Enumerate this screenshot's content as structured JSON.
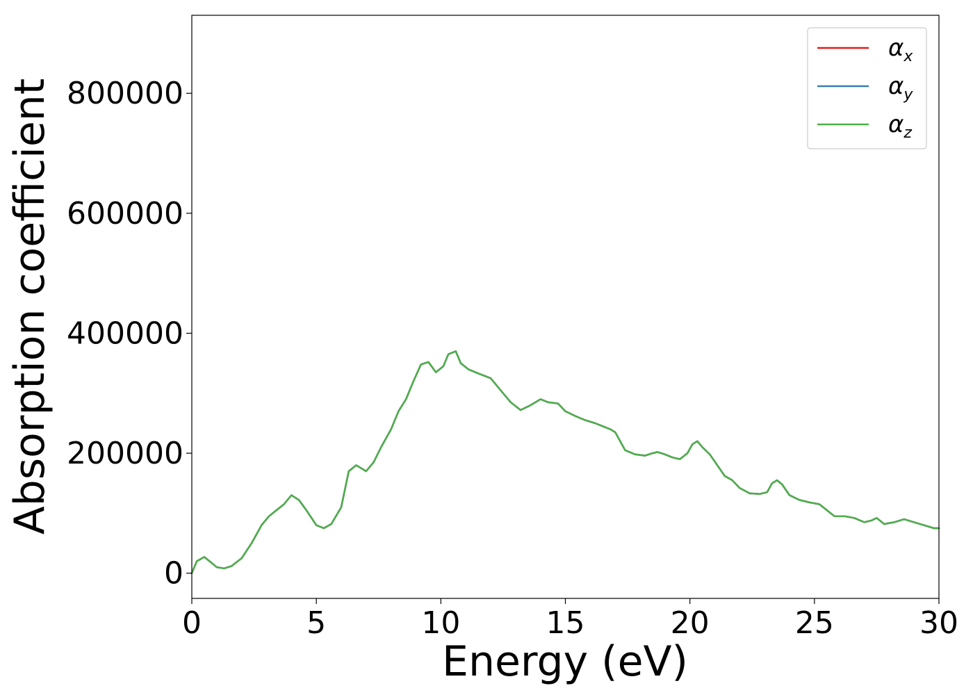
{
  "chart_data": {
    "type": "line",
    "xlabel": "Energy (eV)",
    "ylabel": "Absorption coefficient",
    "xlim": [
      0,
      30
    ],
    "ylim": [
      -42000,
      930000
    ],
    "x_ticks": [
      0,
      5,
      10,
      15,
      20,
      25,
      30
    ],
    "y_ticks": [
      0,
      200000,
      400000,
      600000,
      800000
    ],
    "grid": false,
    "legend_position": "top-right",
    "series": [
      {
        "name_symbol": "α",
        "name_subscript": "x",
        "color": "#e41a1c",
        "x": [
          0,
          0.2,
          0.5,
          0.8,
          1.0,
          1.3,
          1.6,
          2.0,
          2.4,
          2.8,
          3.1,
          3.4,
          3.7,
          4.0,
          4.3,
          4.6,
          5.0,
          5.3,
          5.6,
          6.0,
          6.3,
          6.6,
          6.8,
          7.0,
          7.3,
          7.6,
          8.0,
          8.3,
          8.6,
          8.9,
          9.2,
          9.5,
          9.8,
          10.1,
          10.3,
          10.6,
          10.8,
          11.1,
          11.5,
          12.0,
          12.4,
          12.8,
          13.2,
          13.6,
          14.0,
          14.3,
          14.7,
          15.0,
          15.4,
          15.8,
          16.2,
          16.5,
          16.8,
          17.0,
          17.4,
          17.8,
          18.2,
          18.5,
          18.7,
          19.0,
          19.3,
          19.6,
          19.9,
          20.1,
          20.3,
          20.5,
          20.8,
          21.1,
          21.4,
          21.7,
          22.0,
          22.4,
          22.8,
          23.1,
          23.3,
          23.5,
          23.7,
          24.0,
          24.4,
          24.8,
          25.2,
          25.5,
          25.8,
          26.2,
          26.6,
          27.0,
          27.3,
          27.5,
          27.8,
          28.2,
          28.6,
          29.0,
          29.4,
          29.8,
          30.0
        ],
        "y": [
          0,
          20000,
          27000,
          17000,
          10000,
          8000,
          12000,
          25000,
          50000,
          80000,
          95000,
          105000,
          115000,
          130000,
          122000,
          105000,
          80000,
          75000,
          82000,
          110000,
          170000,
          180000,
          175000,
          170000,
          185000,
          210000,
          240000,
          270000,
          290000,
          320000,
          348000,
          352000,
          335000,
          345000,
          365000,
          370000,
          350000,
          340000,
          333000,
          325000,
          305000,
          285000,
          272000,
          280000,
          290000,
          285000,
          283000,
          270000,
          262000,
          255000,
          250000,
          245000,
          240000,
          235000,
          205000,
          198000,
          196000,
          200000,
          202000,
          198000,
          193000,
          190000,
          200000,
          215000,
          220000,
          210000,
          198000,
          180000,
          162000,
          155000,
          142000,
          133000,
          132000,
          135000,
          150000,
          155000,
          148000,
          130000,
          122000,
          118000,
          115000,
          105000,
          95000,
          95000,
          92000,
          85000,
          88000,
          92000,
          82000,
          85000,
          90000,
          85000,
          80000,
          75000,
          75000
        ]
      },
      {
        "name_symbol": "α",
        "name_subscript": "y",
        "color": "#377eb8",
        "x": [
          0,
          0.2,
          0.5,
          0.8,
          1.0,
          1.3,
          1.6,
          2.0,
          2.4,
          2.8,
          3.1,
          3.4,
          3.7,
          4.0,
          4.3,
          4.6,
          5.0,
          5.3,
          5.6,
          6.0,
          6.3,
          6.6,
          6.8,
          7.0,
          7.3,
          7.6,
          8.0,
          8.3,
          8.6,
          8.9,
          9.2,
          9.5,
          9.8,
          10.1,
          10.3,
          10.6,
          10.8,
          11.1,
          11.5,
          12.0,
          12.4,
          12.8,
          13.2,
          13.6,
          14.0,
          14.3,
          14.7,
          15.0,
          15.4,
          15.8,
          16.2,
          16.5,
          16.8,
          17.0,
          17.4,
          17.8,
          18.2,
          18.5,
          18.7,
          19.0,
          19.3,
          19.6,
          19.9,
          20.1,
          20.3,
          20.5,
          20.8,
          21.1,
          21.4,
          21.7,
          22.0,
          22.4,
          22.8,
          23.1,
          23.3,
          23.5,
          23.7,
          24.0,
          24.4,
          24.8,
          25.2,
          25.5,
          25.8,
          26.2,
          26.6,
          27.0,
          27.3,
          27.5,
          27.8,
          28.2,
          28.6,
          29.0,
          29.4,
          29.8,
          30.0
        ],
        "y": [
          0,
          20000,
          27000,
          17000,
          10000,
          8000,
          12000,
          25000,
          50000,
          80000,
          95000,
          105000,
          115000,
          130000,
          122000,
          105000,
          80000,
          75000,
          82000,
          110000,
          170000,
          180000,
          175000,
          170000,
          185000,
          210000,
          240000,
          270000,
          290000,
          320000,
          348000,
          352000,
          335000,
          345000,
          365000,
          370000,
          350000,
          340000,
          333000,
          325000,
          305000,
          285000,
          272000,
          280000,
          290000,
          285000,
          283000,
          270000,
          262000,
          255000,
          250000,
          245000,
          240000,
          235000,
          205000,
          198000,
          196000,
          200000,
          202000,
          198000,
          193000,
          190000,
          200000,
          215000,
          220000,
          210000,
          198000,
          180000,
          162000,
          155000,
          142000,
          133000,
          132000,
          135000,
          150000,
          155000,
          148000,
          130000,
          122000,
          118000,
          115000,
          105000,
          95000,
          95000,
          92000,
          85000,
          88000,
          92000,
          82000,
          85000,
          90000,
          85000,
          80000,
          75000,
          75000
        ]
      },
      {
        "name_symbol": "α",
        "name_subscript": "z",
        "color": "#4daf4a",
        "x": [
          0,
          0.2,
          0.5,
          0.8,
          1.0,
          1.3,
          1.6,
          2.0,
          2.4,
          2.8,
          3.1,
          3.4,
          3.7,
          4.0,
          4.3,
          4.6,
          5.0,
          5.3,
          5.6,
          6.0,
          6.3,
          6.6,
          6.8,
          7.0,
          7.3,
          7.6,
          8.0,
          8.3,
          8.6,
          8.9,
          9.2,
          9.5,
          9.8,
          10.1,
          10.3,
          10.6,
          10.8,
          11.1,
          11.5,
          12.0,
          12.4,
          12.8,
          13.2,
          13.6,
          14.0,
          14.3,
          14.7,
          15.0,
          15.4,
          15.8,
          16.2,
          16.5,
          16.8,
          17.0,
          17.4,
          17.8,
          18.2,
          18.5,
          18.7,
          19.0,
          19.3,
          19.6,
          19.9,
          20.1,
          20.3,
          20.5,
          20.8,
          21.1,
          21.4,
          21.7,
          22.0,
          22.4,
          22.8,
          23.1,
          23.3,
          23.5,
          23.7,
          24.0,
          24.4,
          24.8,
          25.2,
          25.5,
          25.8,
          26.2,
          26.6,
          27.0,
          27.3,
          27.5,
          27.8,
          28.2,
          28.6,
          29.0,
          29.4,
          29.8,
          30.0
        ],
        "y": [
          0,
          20000,
          27000,
          17000,
          10000,
          8000,
          12000,
          25000,
          50000,
          80000,
          95000,
          105000,
          115000,
          130000,
          122000,
          105000,
          80000,
          75000,
          82000,
          110000,
          170000,
          180000,
          175000,
          170000,
          185000,
          210000,
          240000,
          270000,
          290000,
          320000,
          348000,
          352000,
          335000,
          345000,
          365000,
          370000,
          350000,
          340000,
          333000,
          325000,
          305000,
          285000,
          272000,
          280000,
          290000,
          285000,
          283000,
          270000,
          262000,
          255000,
          250000,
          245000,
          240000,
          235000,
          205000,
          198000,
          196000,
          200000,
          202000,
          198000,
          193000,
          190000,
          200000,
          215000,
          220000,
          210000,
          198000,
          180000,
          162000,
          155000,
          142000,
          133000,
          132000,
          135000,
          150000,
          155000,
          148000,
          130000,
          122000,
          118000,
          115000,
          105000,
          95000,
          95000,
          92000,
          85000,
          88000,
          92000,
          82000,
          85000,
          90000,
          85000,
          80000,
          75000,
          75000
        ]
      }
    ]
  }
}
